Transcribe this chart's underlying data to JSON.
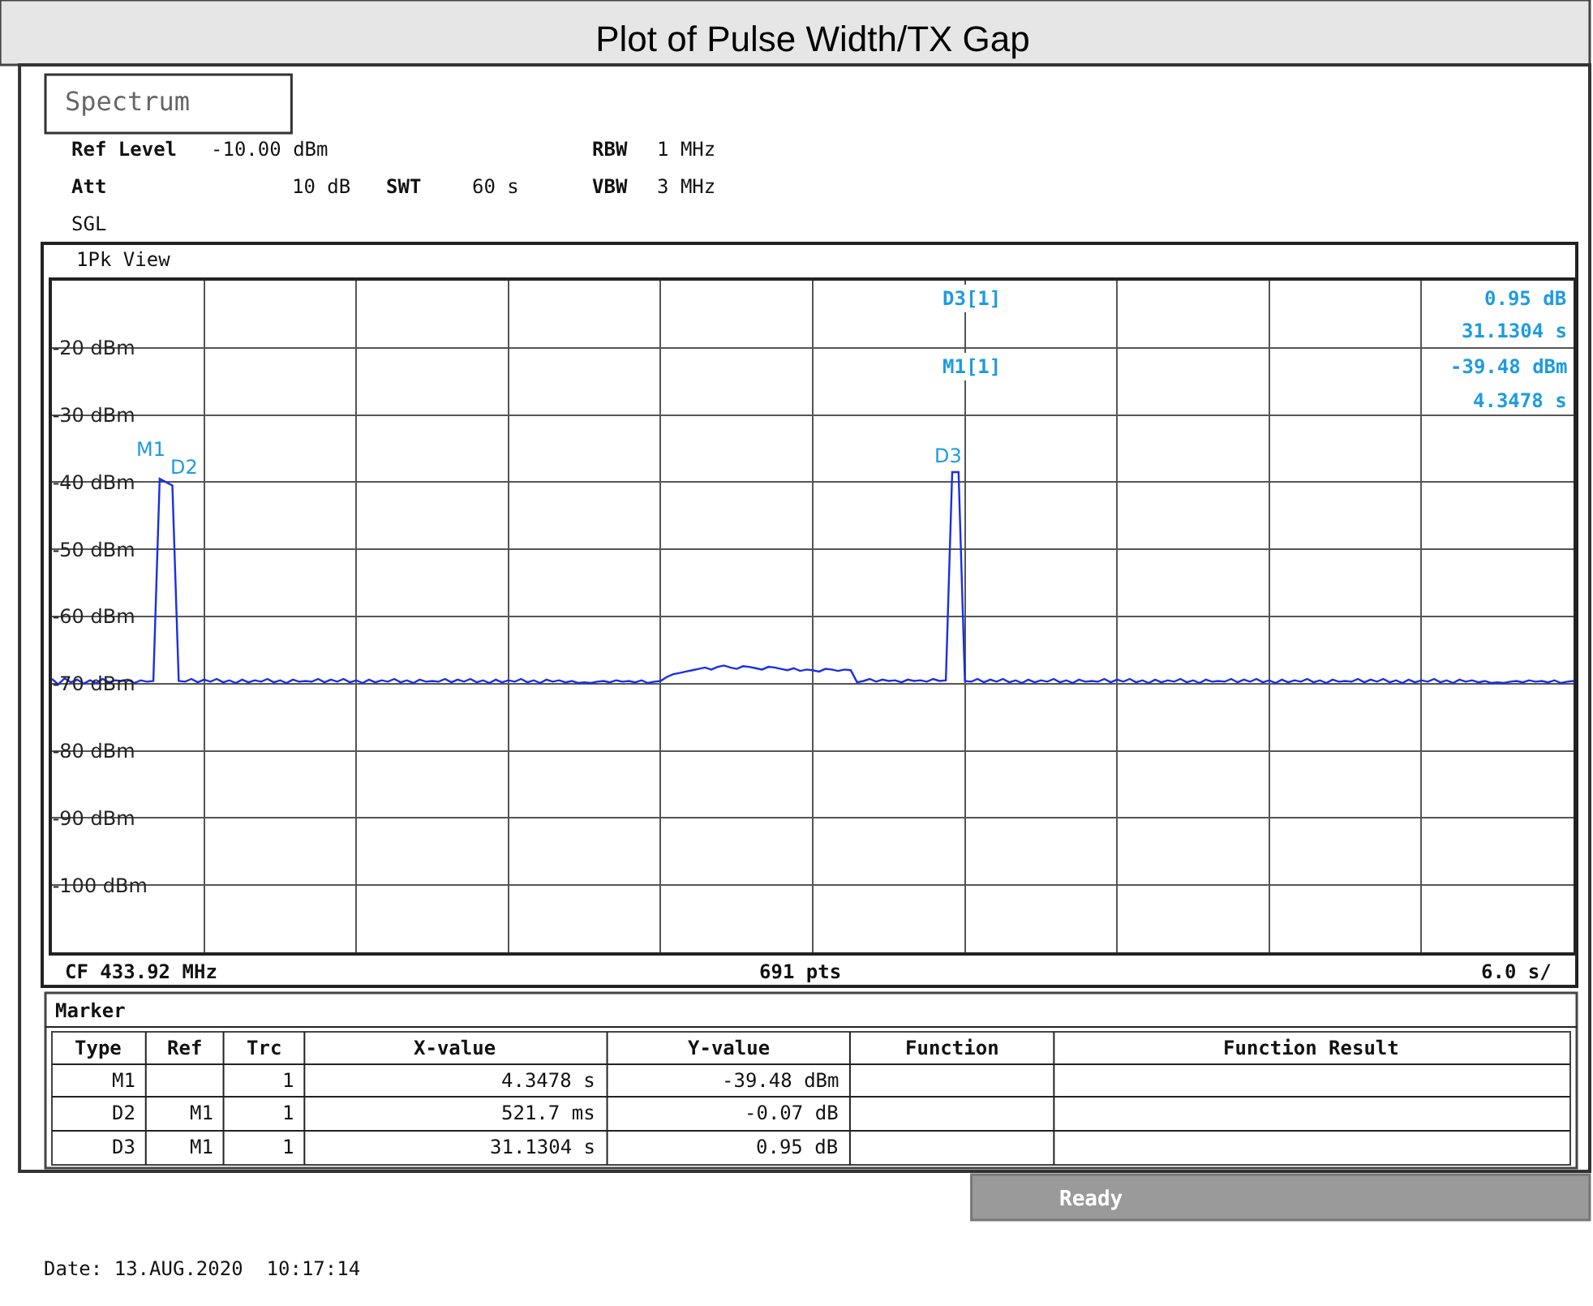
{
  "chart_data": {
    "type": "line",
    "title": "Plot of Pulse Width/TX Gap",
    "categories": [
      null,
      null,
      null,
      null,
      null,
      null,
      null,
      null,
      null,
      null,
      null,
      null,
      null,
      null,
      null,
      null,
      null,
      null,
      null,
      null,
      null,
      null,
      null,
      null,
      null,
      null,
      null,
      null,
      null,
      null,
      null,
      null,
      null,
      null,
      null,
      null,
      null,
      null,
      null,
      null,
      null,
      null,
      null,
      null,
      null,
      null,
      null,
      null,
      null,
      null,
      null,
      null,
      null,
      null,
      null,
      null,
      null,
      null,
      null,
      null,
      null,
      null,
      null,
      null,
      null,
      null,
      null,
      null,
      null,
      null,
      null,
      null,
      null,
      null,
      null,
      null,
      null,
      null,
      null,
      null,
      null,
      null,
      null,
      null,
      null,
      null,
      null,
      null,
      null,
      null,
      null,
      null,
      null,
      null,
      null,
      null,
      null,
      null,
      null,
      null,
      null,
      null,
      null,
      null,
      null,
      null,
      null,
      null,
      null,
      null,
      null,
      null,
      null,
      null,
      null,
      null,
      null,
      null,
      null,
      null,
      null,
      null,
      null,
      null,
      null,
      null,
      null,
      null,
      null,
      null,
      null,
      null,
      null,
      null,
      null,
      null,
      null,
      null,
      null,
      null,
      null,
      null,
      null,
      null,
      null,
      null,
      null,
      null,
      null,
      null,
      null,
      null,
      null,
      null,
      null,
      null,
      null,
      null,
      null,
      null,
      null,
      null,
      null,
      null,
      null,
      null,
      null,
      null,
      null,
      null,
      null,
      null,
      null,
      null,
      null,
      null,
      null,
      null,
      null,
      null,
      null,
      null,
      null,
      null,
      null,
      null,
      null,
      null,
      null,
      null,
      null,
      null,
      null,
      null,
      null,
      null,
      null,
      null,
      null,
      null,
      null,
      null,
      null,
      null,
      null,
      null,
      null,
      null,
      null,
      null,
      null,
      null,
      null,
      null,
      null,
      null,
      null,
      null,
      null,
      null,
      null,
      null,
      null,
      null,
      null,
      null,
      null,
      null,
      null,
      null,
      null,
      null,
      null,
      null,
      null,
      null,
      null,
      null,
      null,
      null,
      null
    ],
    "series": [
      {
        "color": "#1a2ee8",
        "values": [
          -69.3,
          -70.1,
          -69.2,
          -69.8,
          -69.4,
          -70.0,
          -69.5,
          -69.9,
          -69.3,
          -69.8,
          -69.5,
          -69.6,
          -69.4,
          -69.9,
          -69.5,
          -69.7,
          -69.6,
          -39.5,
          -40.0,
          -40.5,
          -69.6,
          -69.7,
          -69.3,
          -69.8,
          -69.4,
          -69.7,
          -69.3,
          -69.8,
          -69.5,
          -69.9,
          -69.4,
          -69.8,
          -69.5,
          -69.7,
          -69.3,
          -69.8,
          -69.5,
          -69.9,
          -69.4,
          -69.7,
          -69.6,
          -69.7,
          -69.3,
          -69.8,
          -69.4,
          -69.7,
          -69.3,
          -69.8,
          -69.5,
          -69.9,
          -69.4,
          -69.8,
          -69.5,
          -69.7,
          -69.3,
          -69.8,
          -69.5,
          -69.9,
          -69.4,
          -69.7,
          -69.6,
          -69.7,
          -69.3,
          -69.8,
          -69.4,
          -69.7,
          -69.3,
          -69.8,
          -69.5,
          -69.9,
          -69.4,
          -69.8,
          -69.5,
          -69.7,
          -69.3,
          -69.8,
          -69.5,
          -69.9,
          -69.4,
          -69.7,
          -69.5,
          -69.8,
          -69.6,
          -69.9,
          -69.8,
          -69.9,
          -69.7,
          -69.6,
          -69.8,
          -69.5,
          -69.7,
          -69.6,
          -69.8,
          -69.5,
          -69.9,
          -69.7,
          -69.6,
          -69.0,
          -68.6,
          -68.4,
          -68.2,
          -68.0,
          -67.8,
          -67.6,
          -67.9,
          -67.5,
          -67.3,
          -67.6,
          -67.8,
          -67.4,
          -67.5,
          -67.7,
          -67.9,
          -67.5,
          -67.6,
          -67.8,
          -68.0,
          -67.7,
          -68.1,
          -67.9,
          -68.0,
          -68.2,
          -67.8,
          -67.9,
          -68.1,
          -67.9,
          -68.0,
          -69.8,
          -69.6,
          -69.3,
          -69.7,
          -69.4,
          -69.6,
          -69.5,
          -69.8,
          -69.4,
          -69.6,
          -69.5,
          -69.7,
          -69.3,
          -69.6,
          -69.5,
          -38.5,
          -38.5,
          -69.6,
          -69.7,
          -69.3,
          -69.8,
          -69.4,
          -69.7,
          -69.3,
          -69.8,
          -69.5,
          -69.9,
          -69.4,
          -69.8,
          -69.5,
          -69.7,
          -69.3,
          -69.8,
          -69.5,
          -69.9,
          -69.4,
          -69.7,
          -69.6,
          -69.7,
          -69.3,
          -69.8,
          -69.4,
          -69.7,
          -69.3,
          -69.8,
          -69.5,
          -69.9,
          -69.4,
          -69.8,
          -69.5,
          -69.7,
          -69.3,
          -69.8,
          -69.5,
          -69.9,
          -69.4,
          -69.7,
          -69.6,
          -69.7,
          -69.3,
          -69.8,
          -69.4,
          -69.7,
          -69.3,
          -69.8,
          -69.5,
          -69.9,
          -69.4,
          -69.8,
          -69.5,
          -69.7,
          -69.3,
          -69.8,
          -69.5,
          -69.9,
          -69.4,
          -69.7,
          -69.6,
          -69.7,
          -69.3,
          -69.8,
          -69.4,
          -69.7,
          -69.3,
          -69.8,
          -69.5,
          -69.9,
          -69.4,
          -69.8,
          -69.5,
          -69.7,
          -69.3,
          -69.8,
          -69.5,
          -69.9,
          -69.4,
          -69.7,
          -69.5,
          -69.8,
          -69.6,
          -69.9,
          -69.8,
          -69.9,
          -69.7,
          -69.6,
          -69.8,
          -69.5,
          -69.7,
          -69.6,
          -69.8,
          -69.5,
          -69.9,
          -69.7,
          -69.6
        ]
      }
    ],
    "ylim": [
      -110,
      -10
    ],
    "yticks": [
      {
        "value": -10,
        "label": null
      },
      {
        "value": -20,
        "label": "-20 dBm"
      },
      {
        "value": -30,
        "label": "-30 dBm"
      },
      {
        "value": -40,
        "label": "-40 dBm"
      },
      {
        "value": -50,
        "label": "-50 dBm"
      },
      {
        "value": -60,
        "label": "-60 dBm"
      },
      {
        "value": -70,
        "label": "-70 dBm"
      },
      {
        "value": -80,
        "label": "-80 dBm"
      },
      {
        "value": -90,
        "label": "-90 dBm"
      },
      {
        "value": -100,
        "label": "-100 dBm"
      },
      {
        "value": -110,
        "label": null
      }
    ],
    "tick_labels": "y",
    "grid": true,
    "annotations": [
      "M1",
      "D2",
      "D3",
      "Spectrum",
      "Ref Level",
      "-10.00 dBm",
      "RBW",
      "1 MHz",
      "Att",
      "10 dB",
      "SWT",
      "60 s",
      "VBW",
      "3 MHz",
      "SGL",
      "1Pk View",
      "D3[1]",
      "0.95 dB",
      "31.1304 s",
      "M1[1]",
      "-39.48 dBm",
      "4.3478 s",
      "CF 433.92 MHz",
      "691 pts",
      "6.0 s/",
      "Marker",
      "Type",
      "Ref",
      "Trc",
      "X-value",
      "Y-value",
      "Function",
      "Function Result",
      "M1",
      "1",
      "4.3478 s",
      "-39.48 dBm",
      "D2",
      "M1",
      "1",
      "521.7 ms",
      "-0.07 dB",
      "D3",
      "M1",
      "1",
      "31.1304 s",
      "0.95 dB",
      "Ready",
      "Date: 13.AUG.2020  10:17:14"
    ]
  }
}
